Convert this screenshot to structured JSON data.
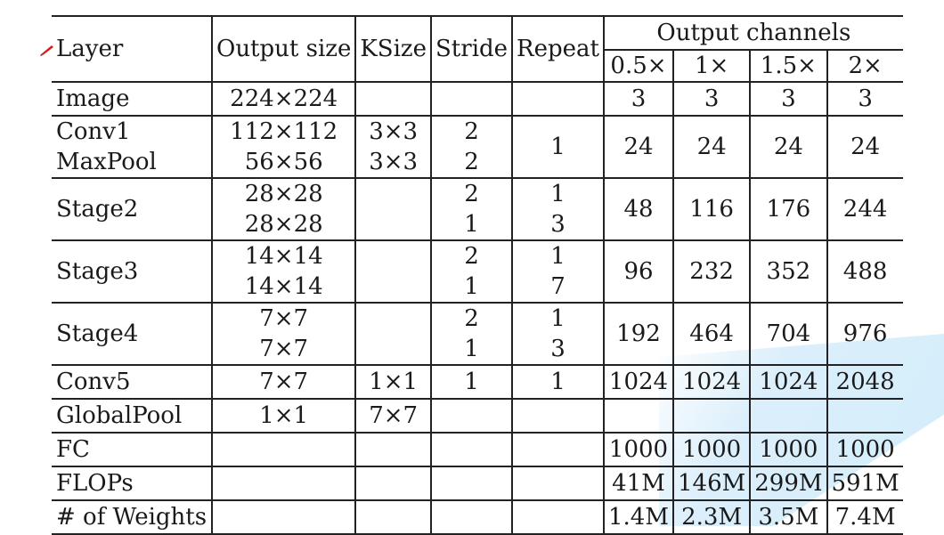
{
  "table": {
    "header": {
      "layer": "Layer",
      "output_size": "Output size",
      "ksize": "KSize",
      "stride": "Stride",
      "repeat": "Repeat",
      "output_channels": "Output channels",
      "channel_multipliers": [
        "0.5×",
        "1×",
        "1.5×",
        "2×"
      ]
    },
    "rows": [
      {
        "layer": "Image",
        "output_size": "224×224",
        "channels": [
          "3",
          "3",
          "3",
          "3"
        ]
      },
      {
        "layer_a": "Conv1",
        "layer_b": "MaxPool",
        "output_a": "112×112",
        "output_b": "56×56",
        "ksize_a": "3×3",
        "ksize_b": "3×3",
        "stride_a": "2",
        "stride_b": "2",
        "repeat": "1",
        "channels": [
          "24",
          "24",
          "24",
          "24"
        ]
      },
      {
        "layer": "Stage2",
        "output_a": "28×28",
        "output_b": "28×28",
        "stride_a": "2",
        "stride_b": "1",
        "repeat_a": "1",
        "repeat_b": "3",
        "channels": [
          "48",
          "116",
          "176",
          "244"
        ]
      },
      {
        "layer": "Stage3",
        "output_a": "14×14",
        "output_b": "14×14",
        "stride_a": "2",
        "stride_b": "1",
        "repeat_a": "1",
        "repeat_b": "7",
        "channels": [
          "96",
          "232",
          "352",
          "488"
        ]
      },
      {
        "layer": "Stage4",
        "output_a": "7×7",
        "output_b": "7×7",
        "stride_a": "2",
        "stride_b": "1",
        "repeat_a": "1",
        "repeat_b": "3",
        "channels": [
          "192",
          "464",
          "704",
          "976"
        ]
      },
      {
        "layer": "Conv5",
        "output_size": "7×7",
        "ksize": "1×1",
        "stride": "1",
        "repeat": "1",
        "channels": [
          "1024",
          "1024",
          "1024",
          "2048"
        ]
      },
      {
        "layer": "GlobalPool",
        "output_size": "1×1",
        "ksize": "7×7"
      },
      {
        "layer": "FC",
        "channels": [
          "1000",
          "1000",
          "1000",
          "1000"
        ]
      },
      {
        "layer": "FLOPs",
        "channels": [
          "41M",
          "146M",
          "299M",
          "591M"
        ]
      },
      {
        "layer": "# of Weights",
        "channels": [
          "1.4M",
          "2.3M",
          "3.5M",
          "7.4M"
        ]
      }
    ]
  },
  "icons": {
    "annotation": "pen-icon"
  },
  "colors": {
    "rule": "#222222",
    "pen": "#d42020",
    "highlight": "#bee1f8"
  }
}
